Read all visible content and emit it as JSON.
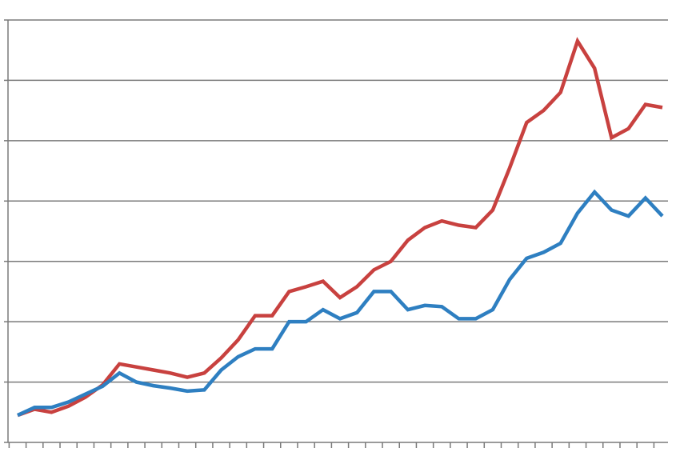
{
  "chart_data": {
    "type": "line",
    "title": "",
    "xlabel": "",
    "ylabel": "",
    "grid": true,
    "legend": "none",
    "ylim": [
      0,
      7
    ],
    "x": [
      1,
      2,
      3,
      4,
      5,
      6,
      7,
      8,
      9,
      10,
      11,
      12,
      13,
      14,
      15,
      16,
      17,
      18,
      19,
      20,
      21,
      22,
      23,
      24,
      25,
      26,
      27,
      28,
      29,
      30,
      31,
      32,
      33,
      34,
      35,
      36,
      37,
      38,
      39
    ],
    "series": [
      {
        "color": "#c8413f",
        "values": [
          0.45,
          0.55,
          0.5,
          0.6,
          0.75,
          0.95,
          1.3,
          1.25,
          1.2,
          1.15,
          1.08,
          1.15,
          1.4,
          1.7,
          2.1,
          2.1,
          2.5,
          2.58,
          2.67,
          2.4,
          2.58,
          2.86,
          3.0,
          3.35,
          3.56,
          3.67,
          3.6,
          3.56,
          3.85,
          4.55,
          5.3,
          5.5,
          5.8,
          6.65,
          6.2,
          5.05,
          5.2,
          5.6,
          5.55
        ]
      },
      {
        "color": "#2e7fc1",
        "values": [
          0.45,
          0.58,
          0.58,
          0.67,
          0.8,
          0.93,
          1.15,
          1.0,
          0.94,
          0.9,
          0.85,
          0.87,
          1.2,
          1.42,
          1.55,
          1.55,
          2.0,
          2.0,
          2.2,
          2.05,
          2.15,
          2.5,
          2.5,
          2.2,
          2.27,
          2.25,
          2.05,
          2.05,
          2.2,
          2.7,
          3.05,
          3.15,
          3.3,
          3.8,
          4.15,
          3.85,
          3.75,
          4.05,
          3.75
        ]
      }
    ]
  }
}
